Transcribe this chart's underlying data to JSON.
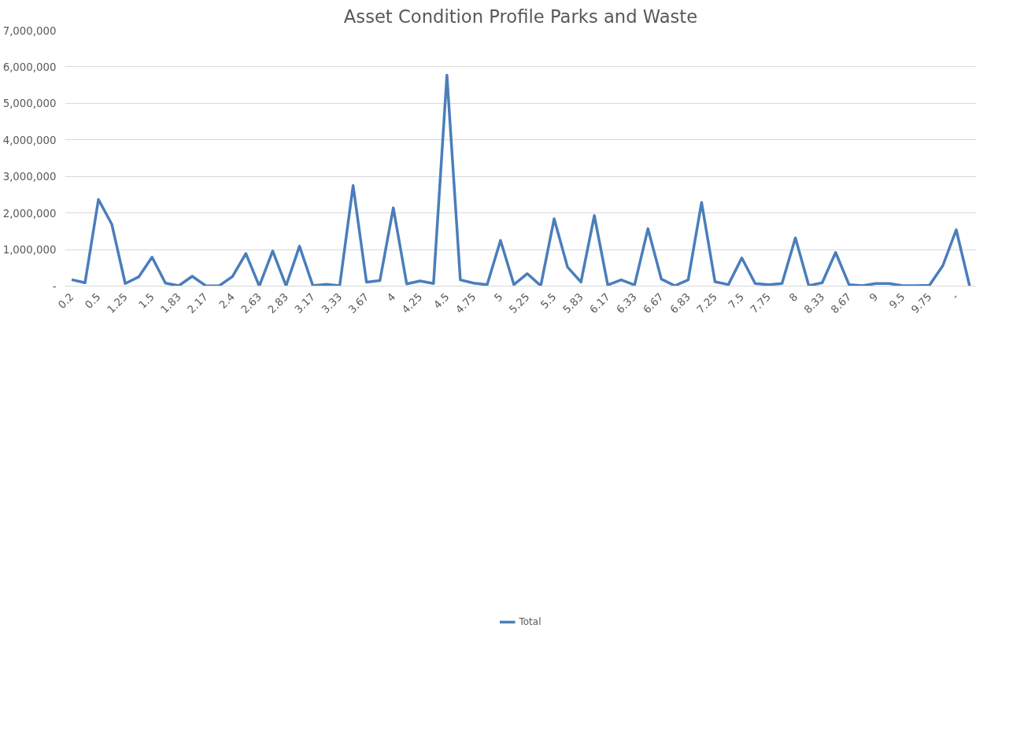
{
  "chart_data": {
    "type": "line",
    "title": "Asset Condition Profile Parks and Waste",
    "categories": [
      "0.2",
      null,
      "0.5",
      null,
      "1.25",
      null,
      "1.5",
      null,
      "1.83",
      null,
      "2.17",
      null,
      "2.4",
      null,
      "2.63",
      null,
      "2.83",
      null,
      "3.17",
      null,
      "3.33",
      null,
      "3.67",
      null,
      "4",
      null,
      "4.25",
      null,
      "4.5",
      null,
      "4.75",
      null,
      "5",
      null,
      "5.25",
      null,
      "5.5",
      null,
      "5.83",
      null,
      "6.17",
      null,
      "6.33",
      null,
      "6.67",
      null,
      "6.83",
      null,
      "7.25",
      null,
      "7.5",
      null,
      "7.75",
      null,
      "8",
      null,
      "8.33",
      null,
      "8.67",
      null,
      "9",
      null,
      "9.5",
      null,
      "9.75",
      null,
      "-",
      null
    ],
    "series": [
      {
        "name": "Total",
        "color": "#4a7ebb",
        "values": [
          175000,
          90000,
          2370000,
          1690000,
          70000,
          250000,
          790000,
          80000,
          10000,
          270000,
          10000,
          5000,
          260000,
          890000,
          0,
          960000,
          10000,
          1090000,
          10000,
          50000,
          10000,
          2750000,
          110000,
          150000,
          2140000,
          60000,
          140000,
          70000,
          5770000,
          170000,
          80000,
          40000,
          1250000,
          40000,
          340000,
          10000,
          1840000,
          520000,
          110000,
          1930000,
          30000,
          170000,
          30000,
          1570000,
          190000,
          10000,
          170000,
          2290000,
          120000,
          40000,
          770000,
          70000,
          40000,
          70000,
          1320000,
          10000,
          90000,
          920000,
          40000,
          10000,
          70000,
          70000,
          10000,
          10000,
          20000,
          560000,
          1540000,
          0
        ]
      }
    ],
    "ylim": [
      0,
      7000000
    ],
    "yticks": [
      {
        "value": 0,
        "label": "-"
      },
      {
        "value": 1000000,
        "label": "1,000,000"
      },
      {
        "value": 2000000,
        "label": "2,000,000"
      },
      {
        "value": 3000000,
        "label": "3,000,000"
      },
      {
        "value": 4000000,
        "label": "4,000,000"
      },
      {
        "value": 5000000,
        "label": "5,000,000"
      },
      {
        "value": 6000000,
        "label": "6,000,000"
      },
      {
        "value": 7000000,
        "label": "7,000,000"
      }
    ],
    "grid": "y",
    "legend": "bottom",
    "marker": "none",
    "line_style": "solid"
  }
}
